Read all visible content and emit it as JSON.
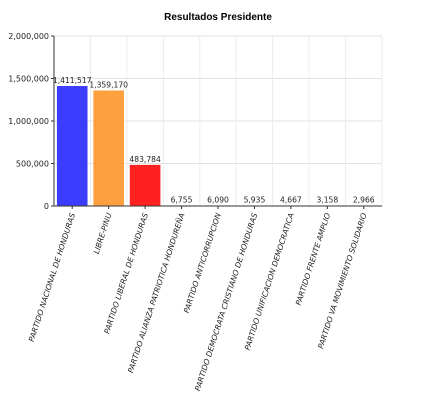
{
  "chart_data": {
    "type": "bar",
    "title": "Resultados Presidente",
    "xlabel": "",
    "ylabel": "",
    "ylim": [
      0,
      2000000
    ],
    "yticks": [
      0,
      500000,
      1000000,
      1500000,
      2000000
    ],
    "ytick_labels": [
      "0",
      "500,000",
      "1,000,000",
      "1,500,000",
      "2,000,000"
    ],
    "grid": true,
    "legend": "none",
    "categories": [
      "PARTIDO NACIONAL DE HONDURAS",
      "LIBRE-PINU",
      "PARTIDO LIBERAL DE HONDURAS",
      "PARTIDO ALIANZA PATRIOTICA HONDUREÑA",
      "PARTIDO ANTICORRUPCION",
      "PARTIDO DEMOCRATA CRISTIANO DE HONDURAS",
      "PARTIDO UNIFICACION DEMOCRATICA",
      "PARTIDO FRENTE AMPLIO",
      "PARTIDO VA MOVIMIENTO SOLIDARIO"
    ],
    "values": [
      1411517,
      1359170,
      483784,
      6755,
      6090,
      5935,
      4667,
      3158,
      2966
    ],
    "value_labels": [
      "1,411,517",
      "1,359,170",
      "483,784",
      "6,755",
      "6,090",
      "5,935",
      "4,667",
      "3,158",
      "2,966"
    ],
    "colors": [
      "#3c3cff",
      "#ffa040",
      "#ff2020",
      "#888888",
      "#888888",
      "#888888",
      "#888888",
      "#888888",
      "#888888"
    ]
  }
}
